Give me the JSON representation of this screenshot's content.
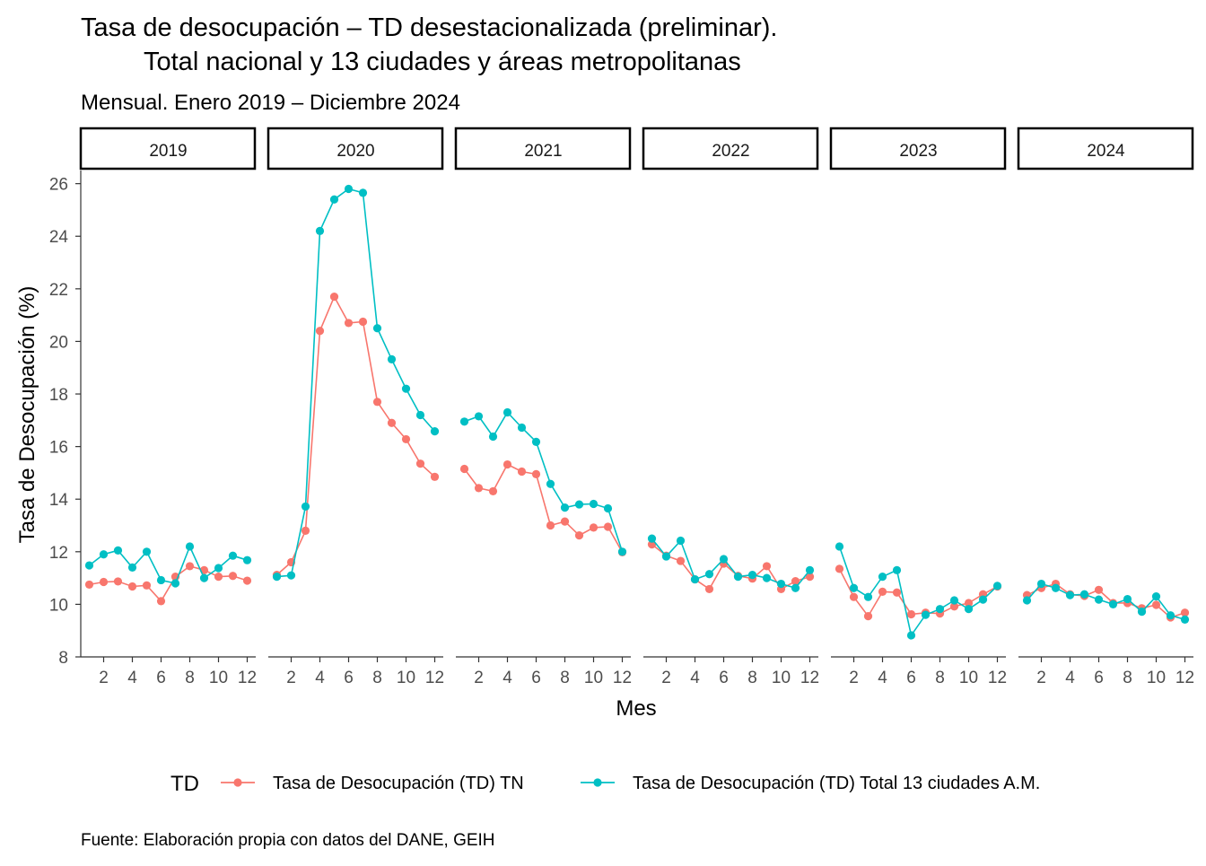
{
  "chart_data": {
    "type": "line",
    "title": "Tasa de desocupación – TD desestacionalizada (preliminar).",
    "title_line2": "Total nacional y 13 ciudades y áreas metropolitanas",
    "subtitle": "Mensual. Enero 2019 – Diciembre 2024",
    "xlabel": "Mes",
    "ylabel": "Tasa de Desocupación (%)",
    "caption": "Fuente: Elaboración propia con datos del DANE, GEIH",
    "ylim": [
      8,
      26.5
    ],
    "yticks": [
      "8",
      "10",
      "12",
      "14",
      "16",
      "18",
      "20",
      "22",
      "24",
      "26"
    ],
    "xticks": [
      "2",
      "4",
      "6",
      "8",
      "10",
      "12"
    ],
    "legend": {
      "title": "TD",
      "position": "bottom"
    },
    "facets": [
      "2019",
      "2020",
      "2021",
      "2022",
      "2023",
      "2024"
    ],
    "months": [
      1,
      2,
      3,
      4,
      5,
      6,
      7,
      8,
      9,
      10,
      11,
      12
    ],
    "series": [
      {
        "name": "Tasa de Desocupación (TD) TN",
        "color": "#F8766D",
        "values": {
          "2019": [
            10.75,
            10.85,
            10.87,
            10.68,
            10.72,
            10.12,
            11.05,
            11.45,
            11.3,
            11.05,
            11.08,
            10.9
          ],
          "2020": [
            11.12,
            11.6,
            12.8,
            20.4,
            21.7,
            20.7,
            20.75,
            17.7,
            16.9,
            16.28,
            15.35,
            14.85
          ],
          "2021": [
            15.15,
            14.42,
            14.3,
            15.32,
            15.05,
            14.95,
            13.0,
            13.15,
            12.62,
            12.92,
            12.95,
            11.98
          ],
          "2022": [
            12.28,
            11.85,
            11.65,
            10.95,
            10.58,
            11.55,
            11.08,
            10.98,
            11.45,
            10.58,
            10.88,
            11.05
          ],
          "2023": [
            11.35,
            10.28,
            9.55,
            10.48,
            10.45,
            9.62,
            9.68,
            9.65,
            9.92,
            10.05,
            10.38,
            10.68
          ],
          "2024": [
            10.35,
            10.62,
            10.78,
            10.38,
            10.32,
            10.55,
            10.05,
            10.05,
            9.85,
            9.98,
            9.5,
            9.68
          ]
        }
      },
      {
        "name": "Tasa de Desocupación (TD) Total 13 ciudades A.M.",
        "color": "#00BFC4",
        "values": {
          "2019": [
            11.48,
            11.9,
            12.05,
            11.4,
            12.0,
            10.92,
            10.8,
            12.2,
            11.0,
            11.38,
            11.85,
            11.68
          ],
          "2020": [
            11.05,
            11.1,
            13.72,
            24.2,
            25.4,
            25.8,
            25.65,
            20.5,
            19.32,
            18.2,
            17.2,
            16.58
          ],
          "2021": [
            16.95,
            17.15,
            16.38,
            17.3,
            16.72,
            16.18,
            14.58,
            13.68,
            13.8,
            13.82,
            13.65,
            12.0
          ],
          "2022": [
            12.5,
            11.82,
            12.42,
            10.95,
            11.15,
            11.72,
            11.05,
            11.12,
            11.0,
            10.78,
            10.62,
            11.3
          ],
          "2023": [
            12.2,
            10.62,
            10.28,
            11.05,
            11.3,
            8.82,
            9.6,
            9.82,
            10.15,
            9.82,
            10.18,
            10.7
          ],
          "2024": [
            10.15,
            10.78,
            10.62,
            10.35,
            10.38,
            10.18,
            10.0,
            10.2,
            9.72,
            10.3,
            9.58,
            9.42
          ]
        }
      }
    ]
  }
}
